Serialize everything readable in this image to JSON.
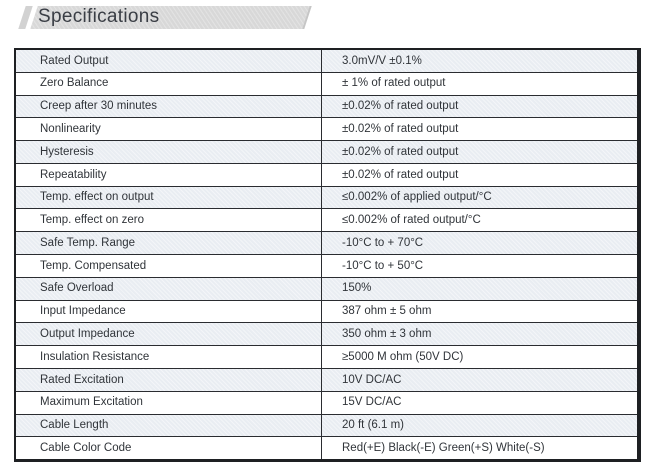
{
  "title": "Specifications",
  "colors": {
    "banner_bg": "#d8d8d8",
    "row_shaded_bg": "#e9edf2",
    "row_plain_bg": "#ffffff",
    "table_border": "#1e2023",
    "text": "#303439"
  },
  "table": {
    "rows": [
      {
        "label": "Rated Output",
        "value": "3.0mV/V ±0.1%"
      },
      {
        "label": "Zero Balance",
        "value": "± 1% of rated output"
      },
      {
        "label": "Creep after 30 minutes",
        "value": "±0.02% of rated output"
      },
      {
        "label": "Nonlinearity",
        "value": "±0.02% of rated output"
      },
      {
        "label": "Hysteresis",
        "value": "±0.02% of rated output"
      },
      {
        "label": "Repeatability",
        "value": "±0.02% of rated output"
      },
      {
        "label": "Temp. effect on output",
        "value": "≤0.002% of applied output/°C"
      },
      {
        "label": "Temp. effect on zero",
        "value": "≤0.002% of rated output/°C"
      },
      {
        "label": "Safe Temp. Range",
        "value": "-10°C to + 70°C"
      },
      {
        "label": "Temp. Compensated",
        "value": "-10°C to + 50°C"
      },
      {
        "label": "Safe Overload",
        "value": "150%"
      },
      {
        "label": "Input Impedance",
        "value": "387 ohm ± 5 ohm"
      },
      {
        "label": "Output Impedance",
        "value": "350 ohm ± 3 ohm"
      },
      {
        "label": "Insulation Resistance",
        "value": "≥5000 M ohm  (50V DC)"
      },
      {
        "label": "Rated Excitation",
        "value": "10V DC/AC"
      },
      {
        "label": "Maximum Excitation",
        "value": "15V DC/AC"
      },
      {
        "label": "Cable Length",
        "value": "20 ft (6.1 m)"
      },
      {
        "label": "Cable Color Code",
        "value": "Red(+E) Black(-E) Green(+S) White(-S)"
      }
    ]
  }
}
